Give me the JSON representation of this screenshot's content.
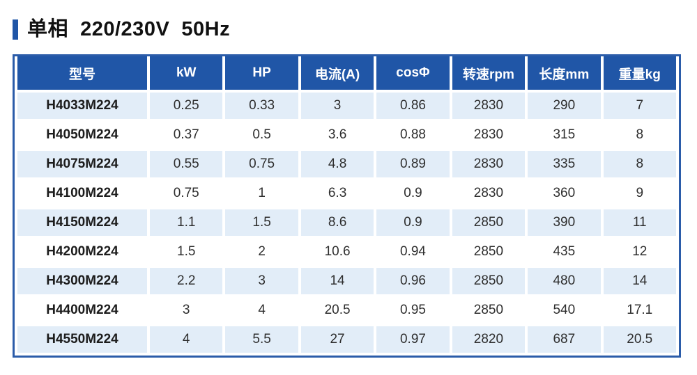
{
  "title": {
    "text": "单相  220/230V  50Hz"
  },
  "colors": {
    "accent_blue": "#2056a7",
    "table_border_blue": "#2b5ca9",
    "header_bg": "#2056a7",
    "header_text": "#ffffff",
    "row_alt_bg": "#e2edf8",
    "row_bg": "#ffffff",
    "cell_text": "#2e2e2e",
    "title_text": "#111111"
  },
  "table": {
    "columns": [
      {
        "key": "model",
        "label": "型号"
      },
      {
        "key": "kw",
        "label": "kW"
      },
      {
        "key": "hp",
        "label": "HP"
      },
      {
        "key": "current-a",
        "label": "电流(A)"
      },
      {
        "key": "cos-phi",
        "label": "cosΦ"
      },
      {
        "key": "speed-rpm",
        "label": "转速rpm"
      },
      {
        "key": "length-mm",
        "label": "长度mm"
      },
      {
        "key": "weight-kg",
        "label": "重量kg"
      }
    ],
    "rows": [
      [
        "H4033M224",
        "0.25",
        "0.33",
        "3",
        "0.86",
        "2830",
        "290",
        "7"
      ],
      [
        "H4050M224",
        "0.37",
        "0.5",
        "3.6",
        "0.88",
        "2830",
        "315",
        "8"
      ],
      [
        "H4075M224",
        "0.55",
        "0.75",
        "4.8",
        "0.89",
        "2830",
        "335",
        "8"
      ],
      [
        "H4100M224",
        "0.75",
        "1",
        "6.3",
        "0.9",
        "2830",
        "360",
        "9"
      ],
      [
        "H4150M224",
        "1.1",
        "1.5",
        "8.6",
        "0.9",
        "2850",
        "390",
        "11"
      ],
      [
        "H4200M224",
        "1.5",
        "2",
        "10.6",
        "0.94",
        "2850",
        "435",
        "12"
      ],
      [
        "H4300M224",
        "2.2",
        "3",
        "14",
        "0.96",
        "2850",
        "480",
        "14"
      ],
      [
        "H4400M224",
        "3",
        "4",
        "20.5",
        "0.95",
        "2850",
        "540",
        "17.1"
      ],
      [
        "H4550M224",
        "4",
        "5.5",
        "27",
        "0.97",
        "2820",
        "687",
        "20.5"
      ]
    ]
  }
}
